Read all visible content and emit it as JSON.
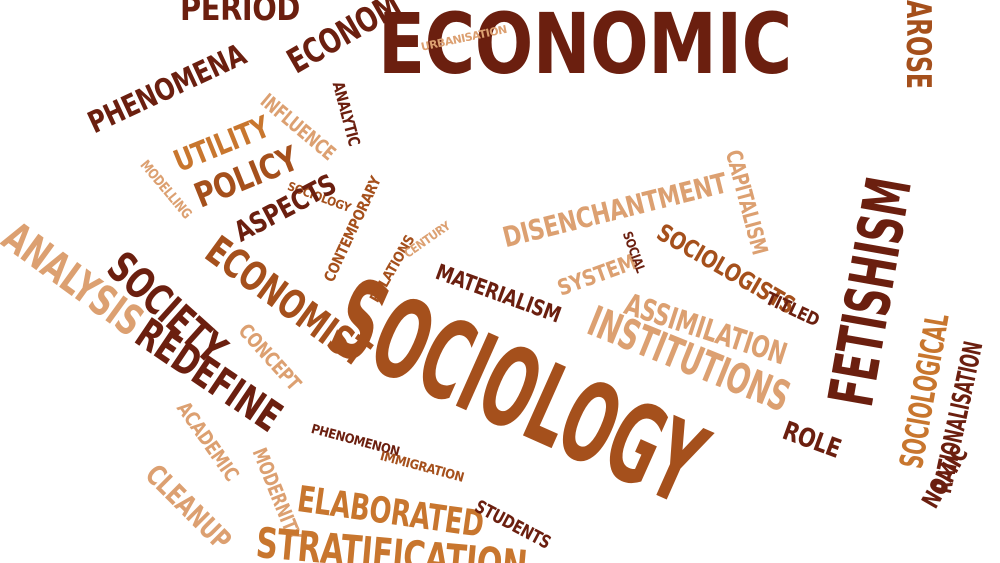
{
  "palette": {
    "dark": "#6b1f0f",
    "mid": "#a5501c",
    "orange": "#c8762e",
    "light": "#dca071",
    "pale": "#e7bd98"
  },
  "words": [
    {
      "id": "w-economic",
      "text": "ECONOMIC",
      "color": "dark"
    },
    {
      "id": "w-sociology",
      "text": "SOCIOLOGY",
      "color": "mid"
    },
    {
      "id": "w-period",
      "text": "PERIOD",
      "color": "dark"
    },
    {
      "id": "w-econom",
      "text": "ECONOM",
      "color": "dark"
    },
    {
      "id": "w-urbanisation",
      "text": "URBANISATION",
      "color": "light"
    },
    {
      "id": "w-arose",
      "text": "AROSE",
      "color": "mid"
    },
    {
      "id": "w-phenomena",
      "text": "PHENOMENA",
      "color": "dark"
    },
    {
      "id": "w-utility",
      "text": "UTILITY",
      "color": "orange"
    },
    {
      "id": "w-policy",
      "text": "POLICY",
      "color": "mid"
    },
    {
      "id": "w-influence",
      "text": "INFLUENCE",
      "color": "light"
    },
    {
      "id": "w-analytic",
      "text": "ANALYTIC",
      "color": "dark"
    },
    {
      "id": "w-modelling",
      "text": "MODELLING",
      "color": "light"
    },
    {
      "id": "w-sociology-small",
      "text": "SOCIOLOGY",
      "color": "mid"
    },
    {
      "id": "w-aspects",
      "text": "ASPECTS",
      "color": "dark"
    },
    {
      "id": "w-contemporary",
      "text": "CONTEMPORARY",
      "color": "mid"
    },
    {
      "id": "w-disenchantment",
      "text": "DISENCHANTMENT",
      "color": "light"
    },
    {
      "id": "w-capitalism",
      "text": "CAPITALISM",
      "color": "light"
    },
    {
      "id": "w-fetishism",
      "text": "FETISHISM",
      "color": "dark"
    },
    {
      "id": "w-analysis",
      "text": "ANALYSIS",
      "color": "light"
    },
    {
      "id": "w-society",
      "text": "SOCIETY",
      "color": "dark"
    },
    {
      "id": "w-economist",
      "text": "ECONOMIST",
      "color": "mid"
    },
    {
      "id": "w-relations",
      "text": "RELATIONS",
      "color": "mid"
    },
    {
      "id": "w-century",
      "text": "CENTURY",
      "color": "light"
    },
    {
      "id": "w-materialism",
      "text": "MATERIALISM",
      "color": "dark"
    },
    {
      "id": "w-system",
      "text": "SYSTEM",
      "color": "light"
    },
    {
      "id": "w-social",
      "text": "SOCIAL",
      "color": "dark"
    },
    {
      "id": "w-sociologists",
      "text": "SOCIOLOGISTS",
      "color": "mid"
    },
    {
      "id": "w-assimilation",
      "text": "ASSIMILATION",
      "color": "light"
    },
    {
      "id": "w-titled",
      "text": "TITLED",
      "color": "dark"
    },
    {
      "id": "w-sociological",
      "text": "SOCIOLOGICAL",
      "color": "orange"
    },
    {
      "id": "w-rationalisation",
      "text": "RATIONALISATION",
      "color": "dark"
    },
    {
      "id": "w-concept",
      "text": "CONCEPT",
      "color": "light"
    },
    {
      "id": "w-institutions",
      "text": "INSTITUTIONS",
      "color": "light"
    },
    {
      "id": "w-redefine",
      "text": "REDEFINE",
      "color": "dark"
    },
    {
      "id": "w-role",
      "text": "ROLE",
      "color": "dark"
    },
    {
      "id": "w-academic",
      "text": "ACADEMIC",
      "color": "light"
    },
    {
      "id": "w-phenomenon",
      "text": "PHENOMENON",
      "color": "dark"
    },
    {
      "id": "w-immigration",
      "text": "IMMIGRATION",
      "color": "mid"
    },
    {
      "id": "w-cleanup",
      "text": "CLEANUP",
      "color": "light"
    },
    {
      "id": "w-modernity",
      "text": "MODERNITY",
      "color": "light"
    },
    {
      "id": "w-elaborated",
      "text": "ELABORATED",
      "color": "orange"
    },
    {
      "id": "w-students",
      "text": "STUDENTS",
      "color": "dark"
    },
    {
      "id": "w-stratification",
      "text": "STRATIFICATION",
      "color": "orange"
    },
    {
      "id": "w-nomic",
      "text": "NOMIC",
      "color": "dark"
    }
  ]
}
